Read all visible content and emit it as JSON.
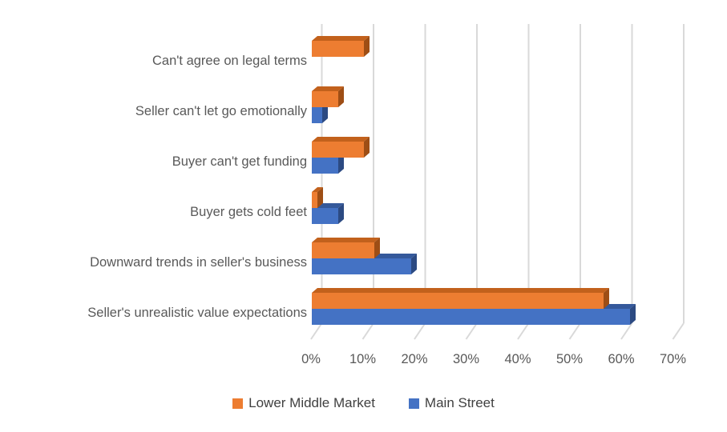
{
  "chart_data": {
    "type": "bar",
    "orientation": "horizontal",
    "style": "3d",
    "title": "",
    "xlabel": "",
    "ylabel": "",
    "categories": [
      "Can't agree on legal terms",
      "Seller can't let go emotionally",
      "Buyer can't get funding",
      "Buyer gets cold feet",
      "Downward trends in seller's business",
      "Seller's unrealistic value expectations"
    ],
    "series": [
      {
        "name": "Lower Middle Market",
        "color": "#ED7D31",
        "top_color": "#C2611C",
        "side_color": "#9E4E15",
        "values": [
          10,
          5,
          10,
          1,
          12,
          56
        ]
      },
      {
        "name": "Main Street",
        "color": "#4472C4",
        "top_color": "#35599B",
        "side_color": "#2C4A82",
        "values": [
          0,
          2,
          5,
          5,
          19,
          61
        ]
      }
    ],
    "x_ticks": [
      "0%",
      "10%",
      "20%",
      "30%",
      "40%",
      "50%",
      "60%",
      "70%"
    ],
    "xlim": [
      0,
      70
    ],
    "grid": true,
    "gridline_color": "#D9D9D9",
    "legend_position": "bottom"
  }
}
